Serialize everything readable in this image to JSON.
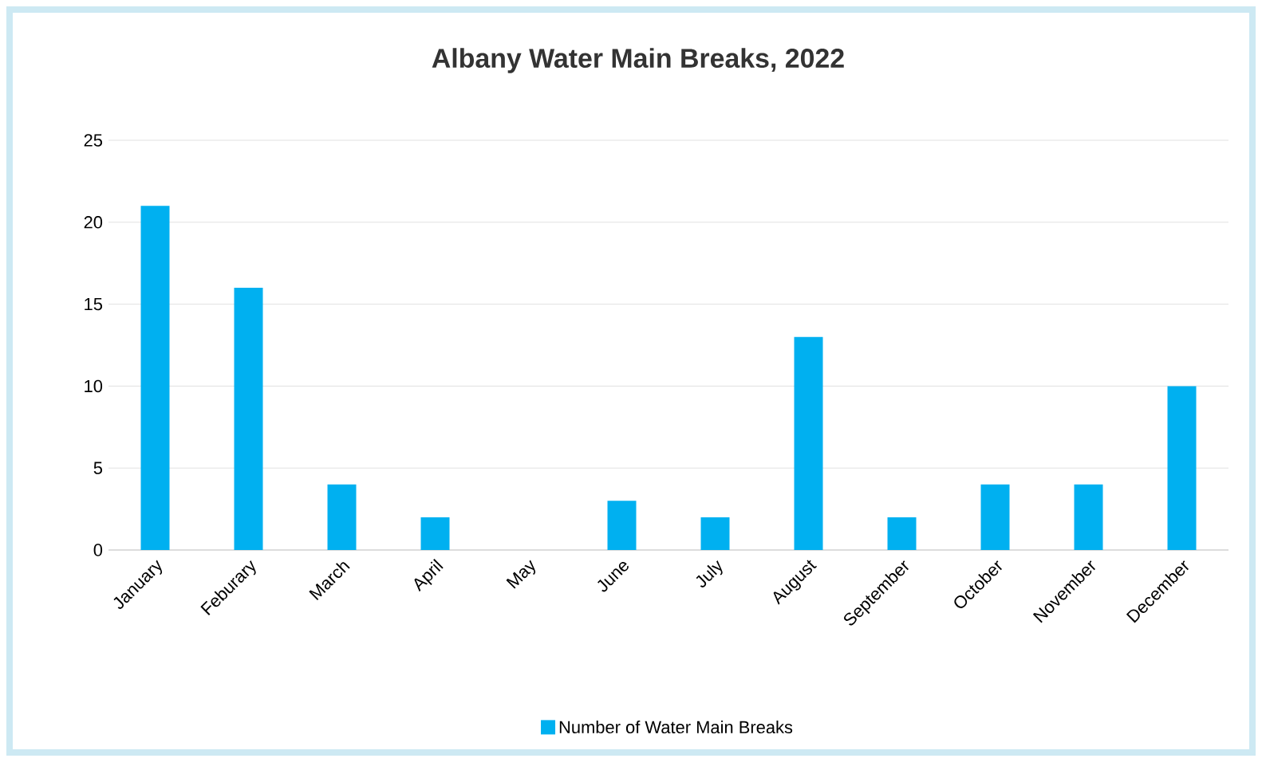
{
  "chart_data": {
    "type": "bar",
    "title": "Albany Water Main Breaks, 2022",
    "categories": [
      "January",
      "Feburary",
      "March",
      "April",
      "May",
      "June",
      "July",
      "August",
      "September",
      "October",
      "November",
      "December"
    ],
    "series": [
      {
        "name": "Number of Water Main Breaks",
        "color": "#00b0f0",
        "values": [
          21,
          16,
          4,
          2,
          0,
          3,
          2,
          13,
          2,
          4,
          4,
          10
        ]
      }
    ],
    "ylim": [
      0,
      25
    ],
    "yticks": [
      0,
      5,
      10,
      15,
      20,
      25
    ],
    "grid": "y",
    "legend": "bottom"
  }
}
